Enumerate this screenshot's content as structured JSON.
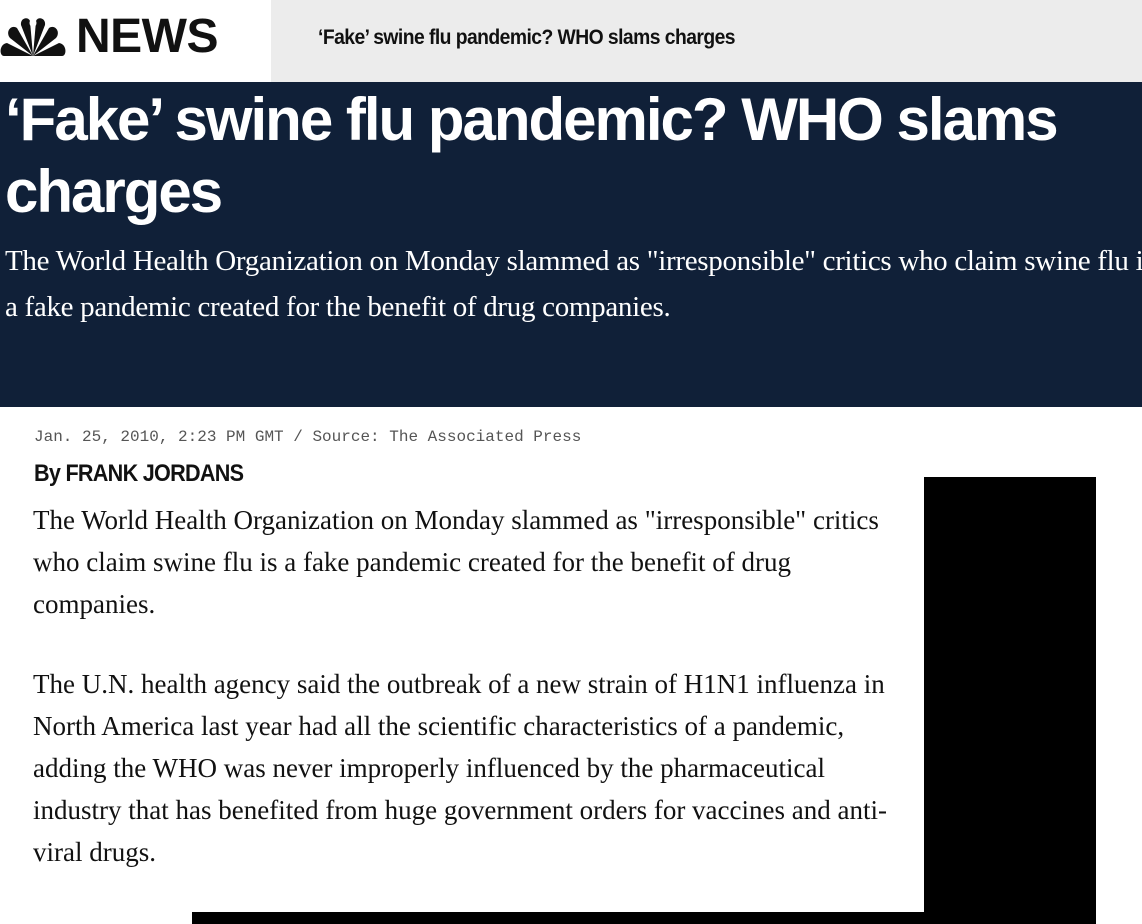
{
  "header": {
    "logo_text": "NEWS",
    "logo_icon": "peacock-icon",
    "headline": "‘Fake’ swine flu pandemic? WHO slams charges"
  },
  "hero": {
    "title": "‘Fake’ swine flu pandemic? WHO slams charges",
    "dek": "The World Health Organization on Monday slammed as \"irresponsible\" critics who claim swine flu is a fake pandemic created for the benefit of drug companies."
  },
  "article": {
    "meta": "Jan. 25, 2010, 2:23 PM GMT / Source: The Associated Press",
    "byline": "By FRANK JORDANS",
    "paragraphs": [
      "The World Health Organization on Monday slammed as \"irresponsible\" critics who claim swine flu is a fake pandemic created for the benefit of drug companies.",
      "The U.N. health agency said the outbreak of a new strain of H1N1 influenza in North America last year had all the scientific characteristics of a pandemic, adding the WHO was never improperly influenced by the pharmaceutical industry that has benefited from huge government orders for vaccines and anti-viral drugs."
    ]
  },
  "colors": {
    "hero_background": "#102038",
    "topbar_background": "#ececec",
    "ad_block": "#000000"
  }
}
